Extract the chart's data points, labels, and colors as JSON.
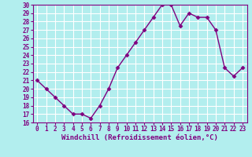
{
  "x": [
    0,
    1,
    2,
    3,
    4,
    5,
    6,
    7,
    8,
    9,
    10,
    11,
    12,
    13,
    14,
    15,
    16,
    17,
    18,
    19,
    20,
    21,
    22,
    23
  ],
  "y": [
    21,
    20,
    19,
    18,
    17,
    17,
    16.5,
    18,
    20,
    22.5,
    24,
    25.5,
    27,
    28.5,
    30,
    30,
    27.5,
    29,
    28.5,
    28.5,
    27,
    22.5,
    21.5,
    22.5
  ],
  "line_color": "#800080",
  "marker": "D",
  "marker_size": 2.5,
  "bg_color": "#b2eeee",
  "grid_color": "#ffffff",
  "xlabel": "Windchill (Refroidissement éolien,°C)",
  "xlabel_fontsize": 6.5,
  "ylim": [
    16,
    30
  ],
  "xlim": [
    -0.5,
    23.5
  ],
  "yticks": [
    16,
    17,
    18,
    19,
    20,
    21,
    22,
    23,
    24,
    25,
    26,
    27,
    28,
    29,
    30
  ],
  "xticks": [
    0,
    1,
    2,
    3,
    4,
    5,
    6,
    7,
    8,
    9,
    10,
    11,
    12,
    13,
    14,
    15,
    16,
    17,
    18,
    19,
    20,
    21,
    22,
    23
  ],
  "tick_fontsize": 5.5,
  "line_width": 1.0,
  "spine_color": "#800080"
}
